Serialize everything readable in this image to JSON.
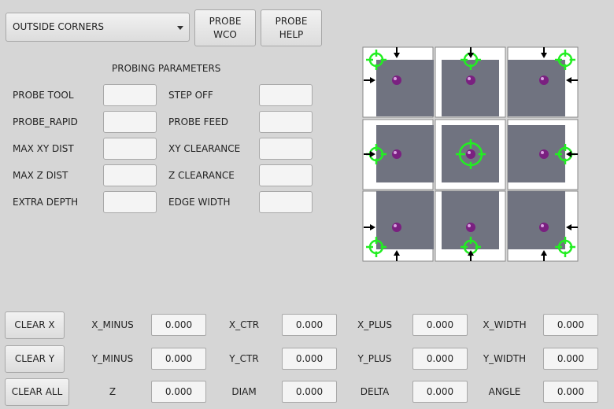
{
  "mode_select": {
    "value": "OUTSIDE CORNERS"
  },
  "buttons": {
    "probe_wco": "PROBE\nWCO",
    "probe_help": "PROBE\nHELP",
    "clear_x": "CLEAR X",
    "clear_y": "CLEAR Y",
    "clear_all": "CLEAR ALL"
  },
  "params": {
    "title": "PROBING PARAMETERS",
    "left": [
      {
        "label": "PROBE TOOL",
        "value": ""
      },
      {
        "label": "PROBE_RAPID",
        "value": ""
      },
      {
        "label": "MAX XY DIST",
        "value": ""
      },
      {
        "label": "MAX Z DIST",
        "value": ""
      },
      {
        "label": "EXTRA DEPTH",
        "value": ""
      }
    ],
    "right": [
      {
        "label": "STEP OFF",
        "value": ""
      },
      {
        "label": "PROBE FEED",
        "value": ""
      },
      {
        "label": "XY CLEARANCE",
        "value": ""
      },
      {
        "label": "Z CLEARANCE",
        "value": ""
      },
      {
        "label": "EDGE WIDTH",
        "value": ""
      }
    ]
  },
  "results": [
    [
      {
        "label": "X_MINUS",
        "value": "0.000"
      },
      {
        "label": "X_CTR",
        "value": "0.000"
      },
      {
        "label": "X_PLUS",
        "value": "0.000"
      },
      {
        "label": "X_WIDTH",
        "value": "0.000"
      }
    ],
    [
      {
        "label": "Y_MINUS",
        "value": "0.000"
      },
      {
        "label": "Y_CTR",
        "value": "0.000"
      },
      {
        "label": "Y_PLUS",
        "value": "0.000"
      },
      {
        "label": "Y_WIDTH",
        "value": "0.000"
      }
    ],
    [
      {
        "label": "Z",
        "value": "0.000"
      },
      {
        "label": "DIAM",
        "value": "0.000"
      },
      {
        "label": "DELTA",
        "value": "0.000"
      },
      {
        "label": "ANGLE",
        "value": "0.000"
      }
    ]
  ],
  "colors": {
    "target": "#22ee22",
    "stock": "#707380",
    "ball": "#8a2a8a"
  },
  "icons": [
    "corner-probe-target-icon",
    "probe-ball-icon",
    "direction-arrow-icon"
  ]
}
